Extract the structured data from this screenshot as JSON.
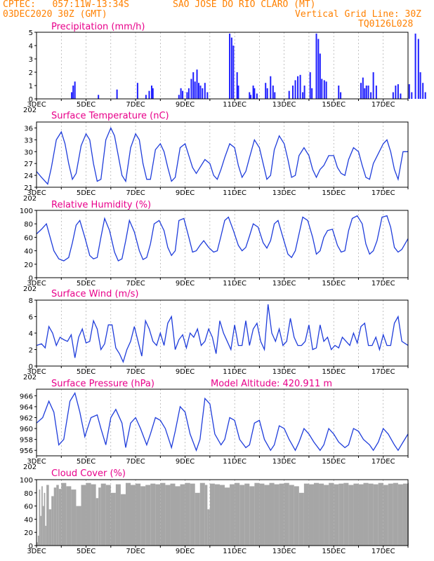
{
  "header": {
    "line1_left": "CPTEC:   057:11W-13:34S",
    "line1_right": "SAO JOSE DO RIO CLARO (MT)",
    "line2_left": "03DEC2020 30Z (GMT)",
    "line2_right": "Vertical Grid Line: 30Z",
    "line3_right": "TQ0126L028"
  },
  "colors": {
    "header": "#ff8000",
    "title": "#e8008a",
    "series": "#1f3ddb",
    "bars": "#1f1fff",
    "cloud": "#a6a6a6"
  },
  "x_axis": {
    "labels": [
      "3DEC",
      "5DEC",
      "7DEC",
      "9DEC",
      "11DEC",
      "13DEC",
      "15DEC",
      "17DEC"
    ],
    "under_label": "202"
  },
  "chart_data": [
    {
      "type": "bar",
      "title": "Precipitation (mm/h)",
      "ylim": [
        0,
        5
      ],
      "yticks": [
        "0",
        "1",
        "2",
        "3",
        "4",
        "5"
      ],
      "x": [
        1.42,
        1.48,
        1.55,
        2.5,
        3.25,
        4.08,
        4.42,
        4.55,
        4.65,
        4.7,
        5.75,
        5.83,
        5.9,
        6.08,
        6.15,
        6.25,
        6.33,
        6.4,
        6.48,
        6.55,
        6.62,
        6.7,
        6.8,
        6.9,
        7.8,
        7.88,
        7.95,
        8.1,
        8.15,
        8.6,
        8.65,
        8.75,
        8.8,
        8.9,
        9.25,
        9.32,
        9.45,
        9.55,
        9.62,
        10.2,
        10.35,
        10.45,
        10.55,
        10.65,
        10.75,
        10.82,
        11.05,
        11.12,
        11.3,
        11.38,
        11.45,
        11.52,
        11.62,
        11.7,
        12.2,
        12.28,
        13.1,
        13.18,
        13.25,
        13.32,
        13.4,
        13.5,
        13.6,
        13.72,
        14.4,
        14.5,
        14.6,
        14.7,
        15.05,
        15.15,
        15.3,
        15.42,
        15.5,
        15.6,
        15.7,
        16.8,
        17.0
      ],
      "values": [
        0.5,
        1.0,
        1.3,
        0.3,
        0.7,
        1.2,
        0.3,
        0.6,
        1.0,
        0.8,
        0.3,
        0.8,
        0.6,
        0.5,
        0.8,
        1.5,
        2.0,
        1.3,
        2.2,
        1.2,
        1.0,
        0.8,
        1.2,
        0.5,
        4.9,
        4.6,
        4.0,
        2.0,
        1.0,
        0.5,
        0.3,
        1.0,
        0.8,
        0.4,
        1.2,
        0.8,
        1.7,
        1.0,
        0.5,
        0.6,
        1.0,
        1.4,
        1.7,
        1.8,
        0.5,
        1.0,
        2.0,
        0.8,
        4.9,
        4.5,
        3.4,
        1.5,
        1.4,
        1.3,
        1.0,
        0.5,
        1.2,
        1.6,
        0.8,
        1.0,
        1.0,
        0.5,
        2.0,
        1.0,
        0.5,
        1.0,
        1.1,
        0.4,
        1.1,
        0.5,
        4.9,
        4.5,
        2.0,
        1.2,
        0.5,
        0.3,
        0.2
      ]
    },
    {
      "type": "line",
      "title": "Surface Temperature (nC)",
      "ylim": [
        21,
        37.5
      ],
      "yticks": [
        "21",
        "24",
        "27",
        "30",
        "33",
        "36"
      ],
      "x": [
        0,
        0.2,
        0.45,
        0.6,
        0.8,
        1.0,
        1.15,
        1.3,
        1.45,
        1.6,
        1.8,
        2.0,
        2.15,
        2.3,
        2.45,
        2.6,
        2.8,
        3.0,
        3.15,
        3.3,
        3.45,
        3.6,
        3.8,
        4.0,
        4.15,
        4.3,
        4.45,
        4.6,
        4.8,
        5.0,
        5.15,
        5.3,
        5.45,
        5.6,
        5.8,
        6.0,
        6.15,
        6.3,
        6.45,
        6.6,
        6.8,
        7.0,
        7.15,
        7.3,
        7.45,
        7.6,
        7.8,
        8.0,
        8.15,
        8.3,
        8.45,
        8.6,
        8.8,
        9.0,
        9.15,
        9.3,
        9.45,
        9.6,
        9.8,
        10.0,
        10.15,
        10.3,
        10.45,
        10.6,
        10.8,
        11.0,
        11.15,
        11.3,
        11.45,
        11.6,
        11.8,
        12.0,
        12.15,
        12.3,
        12.45,
        12.6,
        12.8,
        13.0,
        13.15,
        13.3,
        13.45,
        13.6,
        13.8,
        14.0,
        14.15,
        14.3,
        14.45,
        14.6,
        14.8,
        15.0
      ],
      "values": [
        25.0,
        23.5,
        21.8,
        26.0,
        33.0,
        35.0,
        32.0,
        27.0,
        23.0,
        24.5,
        31.5,
        34.5,
        33.0,
        27.0,
        22.5,
        23.0,
        33.0,
        36.0,
        34.0,
        29.0,
        24.0,
        22.5,
        31.0,
        34.5,
        33.0,
        27.0,
        23.0,
        23.0,
        30.5,
        32.0,
        30.0,
        26.0,
        22.5,
        23.5,
        31.0,
        32.0,
        29.0,
        26.0,
        24.5,
        26.0,
        28.0,
        27.0,
        24.0,
        23.0,
        25.5,
        28.5,
        32.0,
        31.0,
        26.5,
        23.5,
        25.0,
        28.5,
        33.0,
        31.0,
        27.0,
        23.0,
        24.0,
        30.5,
        34.0,
        32.0,
        28.0,
        23.5,
        24.0,
        29.0,
        31.0,
        29.0,
        25.5,
        23.5,
        25.5,
        26.5,
        29.0,
        29.0,
        26.0,
        24.5,
        24.0,
        28.0,
        31.0,
        30.0,
        26.5,
        23.5,
        23.0,
        27.0,
        29.5,
        32.0,
        33.0,
        30.0,
        25.5,
        23.0,
        30.0,
        30.0
      ]
    },
    {
      "type": "line",
      "title": "Relative Humidity (%)",
      "ylim": [
        0,
        100
      ],
      "yticks": [
        "0",
        "20",
        "40",
        "60",
        "80",
        "100"
      ],
      "x": [
        0,
        0.2,
        0.4,
        0.55,
        0.7,
        0.9,
        1.1,
        1.3,
        1.45,
        1.6,
        1.75,
        1.95,
        2.15,
        2.3,
        2.45,
        2.6,
        2.75,
        2.95,
        3.15,
        3.3,
        3.45,
        3.6,
        3.75,
        3.95,
        4.15,
        4.3,
        4.45,
        4.6,
        4.75,
        4.95,
        5.15,
        5.3,
        5.45,
        5.6,
        5.75,
        5.95,
        6.15,
        6.3,
        6.45,
        6.6,
        6.75,
        6.95,
        7.15,
        7.3,
        7.45,
        7.6,
        7.75,
        7.95,
        8.15,
        8.3,
        8.45,
        8.6,
        8.75,
        8.95,
        9.15,
        9.3,
        9.45,
        9.6,
        9.75,
        9.95,
        10.15,
        10.3,
        10.45,
        10.6,
        10.75,
        10.95,
        11.15,
        11.3,
        11.45,
        11.6,
        11.75,
        11.95,
        12.15,
        12.3,
        12.45,
        12.6,
        12.75,
        12.95,
        13.15,
        13.3,
        13.45,
        13.6,
        13.75,
        13.95,
        14.15,
        14.3,
        14.45,
        14.6,
        14.75,
        15.0
      ],
      "values": [
        65,
        72,
        80,
        60,
        40,
        28,
        25,
        30,
        52,
        78,
        85,
        60,
        33,
        28,
        30,
        60,
        88,
        70,
        38,
        25,
        28,
        55,
        85,
        68,
        40,
        27,
        30,
        50,
        80,
        85,
        70,
        45,
        33,
        40,
        85,
        88,
        60,
        38,
        40,
        48,
        55,
        45,
        38,
        40,
        62,
        85,
        90,
        70,
        48,
        40,
        45,
        62,
        80,
        75,
        52,
        44,
        55,
        80,
        85,
        60,
        35,
        30,
        40,
        65,
        90,
        85,
        60,
        35,
        40,
        60,
        70,
        72,
        48,
        38,
        40,
        70,
        88,
        92,
        80,
        50,
        35,
        40,
        55,
        90,
        92,
        75,
        45,
        38,
        42,
        58
      ]
    },
    {
      "type": "line",
      "title": "Surface Wind (m/s)",
      "ylim": [
        0,
        8
      ],
      "yticks": [
        "0",
        "2",
        "4",
        "6",
        "8"
      ],
      "x": [
        0,
        0.2,
        0.35,
        0.5,
        0.65,
        0.8,
        0.95,
        1.1,
        1.25,
        1.4,
        1.55,
        1.7,
        1.85,
        2.0,
        2.15,
        2.3,
        2.45,
        2.6,
        2.75,
        2.9,
        3.05,
        3.2,
        3.35,
        3.5,
        3.65,
        3.8,
        3.95,
        4.1,
        4.25,
        4.4,
        4.55,
        4.7,
        4.85,
        5.0,
        5.15,
        5.3,
        5.45,
        5.6,
        5.75,
        5.9,
        6.05,
        6.2,
        6.35,
        6.5,
        6.65,
        6.8,
        6.95,
        7.1,
        7.25,
        7.4,
        7.55,
        7.7,
        7.85,
        8.0,
        8.15,
        8.3,
        8.45,
        8.6,
        8.75,
        8.9,
        9.05,
        9.2,
        9.35,
        9.5,
        9.65,
        9.8,
        9.95,
        10.1,
        10.25,
        10.4,
        10.55,
        10.7,
        10.85,
        11.0,
        11.15,
        11.3,
        11.45,
        11.6,
        11.75,
        11.9,
        12.05,
        12.2,
        12.35,
        12.5,
        12.65,
        12.8,
        12.95,
        13.1,
        13.25,
        13.4,
        13.55,
        13.7,
        13.85,
        14.0,
        14.15,
        14.3,
        14.45,
        14.6,
        14.75,
        15.0
      ],
      "values": [
        2.5,
        2.7,
        2.2,
        4.8,
        4.0,
        2.5,
        3.5,
        3.2,
        3.0,
        3.8,
        1.0,
        3.5,
        4.5,
        2.8,
        3.0,
        5.5,
        4.5,
        2.0,
        2.7,
        5.0,
        5.0,
        2.2,
        1.5,
        0.5,
        2.0,
        3.0,
        4.8,
        3.0,
        1.2,
        5.5,
        4.5,
        3.0,
        2.5,
        4.0,
        2.5,
        5.2,
        6.0,
        2.0,
        3.2,
        3.8,
        2.2,
        4.0,
        3.5,
        4.5,
        2.5,
        3.0,
        4.5,
        3.5,
        1.5,
        5.5,
        4.0,
        3.0,
        2.0,
        5.0,
        2.5,
        2.5,
        5.5,
        2.5,
        4.5,
        5.2,
        3.0,
        2.0,
        7.5,
        4.0,
        3.0,
        4.5,
        2.5,
        3.0,
        5.8,
        3.5,
        2.5,
        2.5,
        3.0,
        5.0,
        2.0,
        2.2,
        5.0,
        3.0,
        3.5,
        2.0,
        2.5,
        2.2,
        3.5,
        3.0,
        2.5,
        4.0,
        2.8,
        4.8,
        5.2,
        2.5,
        2.5,
        3.5,
        2.0,
        3.8,
        2.5,
        2.5,
        5.2,
        6.0,
        3.0,
        2.5
      ]
    },
    {
      "type": "line",
      "title": "Surface Pressure (hPa)",
      "subtitle": "Model Altitude: 420.911  m",
      "ylim": [
        955,
        967.2
      ],
      "yticks": [
        "956",
        "958",
        "960",
        "962",
        "964",
        "966"
      ],
      "x": [
        0,
        0.25,
        0.5,
        0.7,
        0.9,
        1.1,
        1.35,
        1.55,
        1.75,
        1.95,
        2.2,
        2.45,
        2.6,
        2.8,
        3.0,
        3.2,
        3.45,
        3.6,
        3.8,
        4.0,
        4.2,
        4.45,
        4.6,
        4.8,
        5.0,
        5.2,
        5.45,
        5.6,
        5.8,
        6.0,
        6.2,
        6.45,
        6.6,
        6.8,
        7.0,
        7.2,
        7.45,
        7.6,
        7.8,
        8.0,
        8.2,
        8.45,
        8.6,
        8.8,
        9.0,
        9.2,
        9.45,
        9.6,
        9.8,
        10.0,
        10.2,
        10.45,
        10.6,
        10.8,
        11.0,
        11.2,
        11.45,
        11.6,
        11.8,
        12.0,
        12.2,
        12.45,
        12.6,
        12.8,
        13.0,
        13.2,
        13.45,
        13.6,
        13.8,
        14.0,
        14.2,
        14.45,
        14.6,
        14.8,
        15.0
      ],
      "values": [
        961,
        962,
        965,
        963,
        957,
        958,
        965,
        966.5,
        963,
        958.5,
        962,
        962.5,
        960,
        957,
        962,
        963.5,
        961,
        956.5,
        961,
        962,
        960,
        957,
        959,
        962,
        961.5,
        960,
        956.5,
        959.5,
        964,
        963,
        959,
        956,
        958,
        965.5,
        964.5,
        959,
        957,
        958,
        962,
        961.5,
        958,
        956.5,
        957,
        961,
        961.5,
        958,
        956,
        957,
        960.5,
        960,
        958,
        956,
        957.5,
        960,
        959,
        957.5,
        956,
        957,
        960,
        959,
        957.5,
        956.5,
        957,
        960,
        959.5,
        958,
        957,
        956,
        957.5,
        960,
        959,
        957,
        956,
        957.5,
        959
      ]
    },
    {
      "type": "area",
      "title": "Cloud Cover (%)",
      "ylim": [
        0,
        100
      ],
      "yticks": [
        "0",
        "20",
        "40",
        "60",
        "80",
        "100"
      ],
      "x": [
        0,
        0.05,
        0.1,
        0.15,
        0.2,
        0.25,
        0.3,
        0.35,
        0.4,
        0.5,
        0.6,
        0.7,
        0.8,
        0.9,
        1.0,
        1.2,
        1.4,
        1.6,
        1.8,
        2.0,
        2.2,
        2.4,
        2.5,
        2.6,
        2.8,
        3.0,
        3.2,
        3.4,
        3.6,
        3.8,
        4.0,
        4.2,
        4.4,
        4.6,
        4.8,
        5.0,
        5.2,
        5.4,
        5.6,
        5.8,
        6.0,
        6.2,
        6.4,
        6.6,
        6.8,
        6.9,
        7.0,
        7.2,
        7.4,
        7.6,
        7.8,
        8.0,
        8.2,
        8.4,
        8.6,
        8.8,
        9.0,
        9.2,
        9.4,
        9.6,
        9.8,
        10.0,
        10.2,
        10.4,
        10.6,
        10.8,
        11.0,
        11.2,
        11.4,
        11.6,
        11.8,
        12.0,
        12.2,
        12.4,
        12.6,
        12.8,
        13.0,
        13.2,
        13.4,
        13.6,
        13.8,
        14.0,
        14.2,
        14.4,
        14.6,
        14.8,
        15.0
      ],
      "values": [
        5,
        15,
        85,
        45,
        90,
        60,
        80,
        30,
        92,
        55,
        75,
        88,
        92,
        86,
        95,
        90,
        85,
        60,
        92,
        95,
        93,
        72,
        88,
        94,
        92,
        80,
        93,
        78,
        95,
        92,
        94,
        90,
        92,
        94,
        93,
        95,
        92,
        94,
        90,
        93,
        95,
        94,
        80,
        95,
        92,
        55,
        94,
        93,
        92,
        88,
        93,
        95,
        92,
        94,
        90,
        95,
        94,
        92,
        95,
        93,
        94,
        95,
        92,
        90,
        80,
        94,
        93,
        95,
        94,
        92,
        95,
        93,
        94,
        95,
        92,
        94,
        93,
        95,
        94,
        93,
        95,
        92,
        94,
        95,
        93,
        94,
        95
      ]
    }
  ]
}
